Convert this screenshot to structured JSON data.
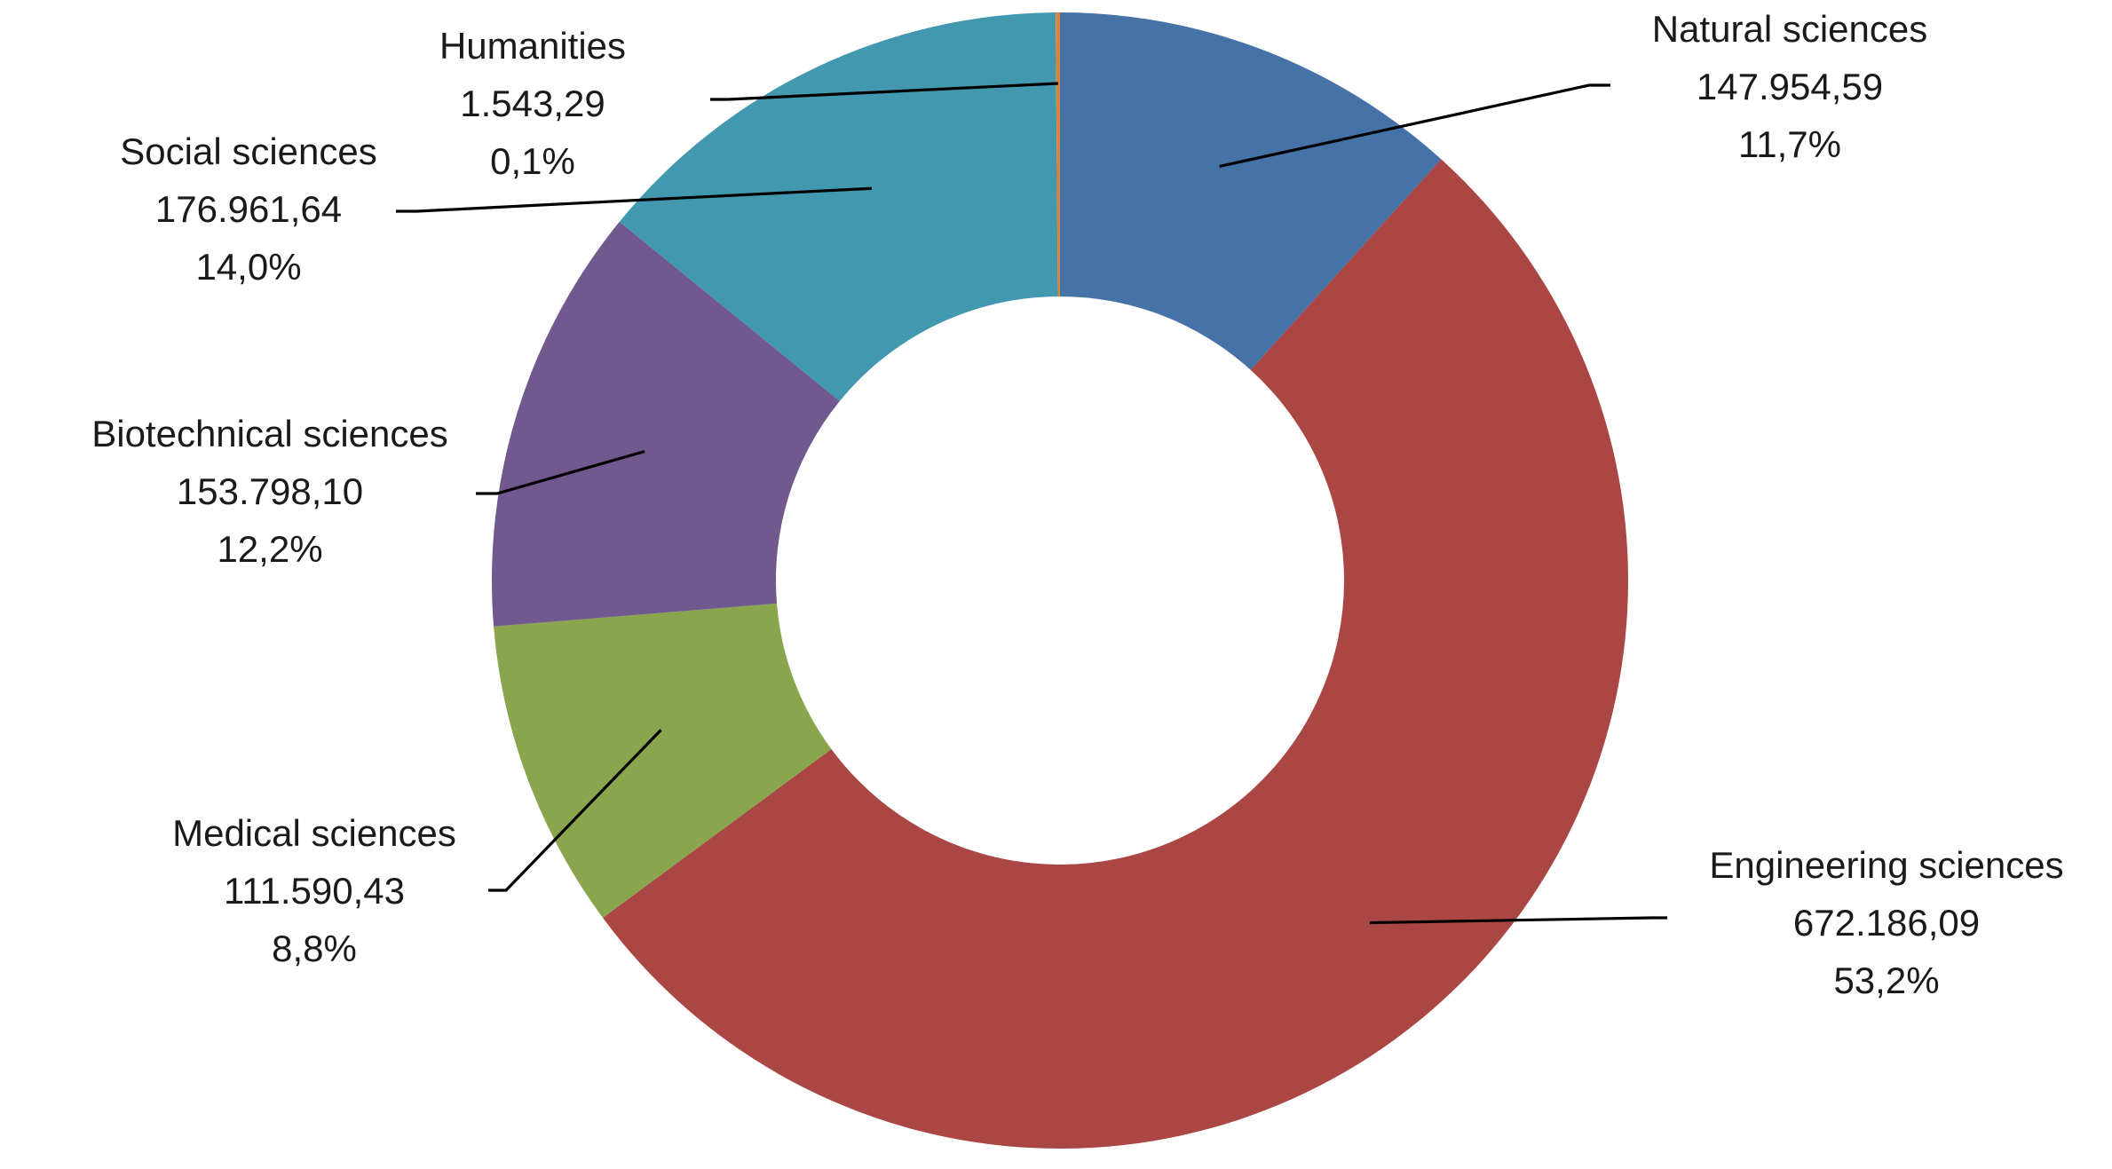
{
  "chart_data": {
    "type": "pie",
    "variant": "doughnut",
    "title": "",
    "legend": "none",
    "slices": [
      {
        "name": "Natural sciences",
        "value": 147954.59,
        "value_label": "147.954,59",
        "percent_label": "11,7%",
        "color": "#4572a7"
      },
      {
        "name": "Engineering sciences",
        "value": 672186.09,
        "value_label": "672.186,09",
        "percent_label": "53,2%",
        "color": "#aa4643"
      },
      {
        "name": "Medical sciences",
        "value": 111590.43,
        "value_label": "111.590,43",
        "percent_label": "8,8%",
        "color": "#89a54e"
      },
      {
        "name": "Biotechnical sciences",
        "value": 153798.1,
        "value_label": "153.798,10",
        "percent_label": "12,2%",
        "color": "#71588f"
      },
      {
        "name": "Social sciences",
        "value": 176961.64,
        "value_label": "176.961,64",
        "percent_label": "14,0%",
        "color": "#4198af"
      },
      {
        "name": "Humanities",
        "value": 1543.29,
        "value_label": "1.543,29",
        "percent_label": "0,1%",
        "color": "#db843d"
      }
    ]
  }
}
